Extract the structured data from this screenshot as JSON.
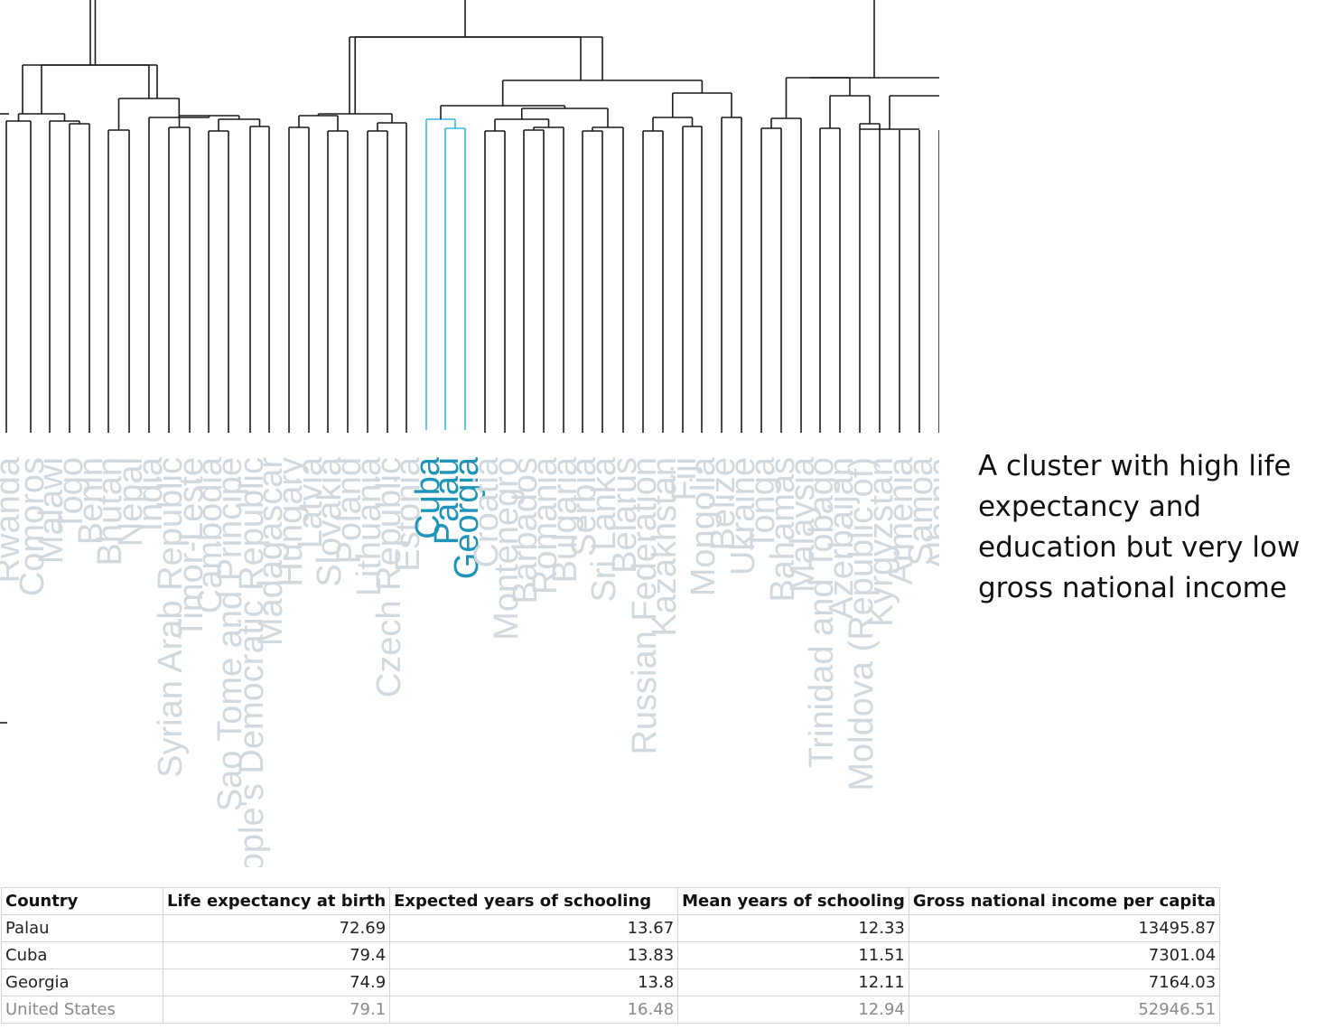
{
  "annotation": {
    "lines": [
      "A cluster with high life",
      "expectancy and",
      "education but very low",
      "gross national income"
    ]
  },
  "colors": {
    "tree_line": "#1a1a1a",
    "highlight_line": "#3bb8e0",
    "highlight_label": "#1e94b8",
    "faded_label": "#d2d9de"
  },
  "dendrogram": {
    "leaves": [
      {
        "name": "Rwanda",
        "highlight": false
      },
      {
        "name": "Comoros",
        "highlight": false
      },
      {
        "name": "Malawi",
        "highlight": false
      },
      {
        "name": "Togo",
        "highlight": false
      },
      {
        "name": "Benin",
        "highlight": false
      },
      {
        "name": "Bhutan",
        "highlight": false
      },
      {
        "name": "Nepal",
        "highlight": false
      },
      {
        "name": "India",
        "highlight": false
      },
      {
        "name": "Syrian Arab Republic",
        "highlight": false
      },
      {
        "name": "Timor-Leste",
        "highlight": false
      },
      {
        "name": "Cambodia",
        "highlight": false
      },
      {
        "name": "Sao Tome and Principe",
        "highlight": false
      },
      {
        "name": "Lao People's Democratic Republic",
        "highlight": false
      },
      {
        "name": "Madagascar",
        "highlight": false
      },
      {
        "name": "Hungary",
        "highlight": false
      },
      {
        "name": "Latvia",
        "highlight": false
      },
      {
        "name": "Slovakia",
        "highlight": false
      },
      {
        "name": "Poland",
        "highlight": false
      },
      {
        "name": "Lithuania",
        "highlight": false
      },
      {
        "name": "Czech Republic",
        "highlight": false
      },
      {
        "name": "Estonia",
        "highlight": false
      },
      {
        "name": "Cuba",
        "highlight": true
      },
      {
        "name": "Palau",
        "highlight": true
      },
      {
        "name": "Georgia",
        "highlight": true
      },
      {
        "name": "Croatia",
        "highlight": false
      },
      {
        "name": "Montenegro",
        "highlight": false
      },
      {
        "name": "Barbados",
        "highlight": false
      },
      {
        "name": "Romania",
        "highlight": false
      },
      {
        "name": "Bulgaria",
        "highlight": false
      },
      {
        "name": "Serbia",
        "highlight": false
      },
      {
        "name": "Sri Lanka",
        "highlight": false
      },
      {
        "name": "Belarus",
        "highlight": false
      },
      {
        "name": "Russian Federation",
        "highlight": false
      },
      {
        "name": "Kazakhstan",
        "highlight": false
      },
      {
        "name": "Fiji",
        "highlight": false
      },
      {
        "name": "Mongolia",
        "highlight": false
      },
      {
        "name": "Belize",
        "highlight": false
      },
      {
        "name": "Ukraine",
        "highlight": false
      },
      {
        "name": "Tonga",
        "highlight": false
      },
      {
        "name": "Bahamas",
        "highlight": false
      },
      {
        "name": "Malaysia",
        "highlight": false
      },
      {
        "name": "Trinidad and Tobago",
        "highlight": false
      },
      {
        "name": "Azerbaijan",
        "highlight": false
      },
      {
        "name": "Moldova (Republic of)",
        "highlight": false
      },
      {
        "name": "Kyrgyzstan",
        "highlight": false
      },
      {
        "name": "Armenia",
        "highlight": false
      },
      {
        "name": "Samoa",
        "highlight": false
      },
      {
        "name": "Albania",
        "highlight": false
      }
    ]
  },
  "table": {
    "headers": [
      "Country",
      "Life expectancy at birth",
      "Expected years of schooling",
      "Mean years of schooling",
      "Gross national income per capita"
    ],
    "rows": [
      {
        "country": "Palau",
        "life": "72.69",
        "expected": "13.67",
        "mean": "12.33",
        "gni": "13495.87",
        "muted": false
      },
      {
        "country": "Cuba",
        "life": "79.4",
        "expected": "13.83",
        "mean": "11.51",
        "gni": "7301.04",
        "muted": false
      },
      {
        "country": "Georgia",
        "life": "74.9",
        "expected": "13.8",
        "mean": "12.11",
        "gni": "7164.03",
        "muted": false
      },
      {
        "country": "United States",
        "life": "79.1",
        "expected": "16.48",
        "mean": "12.94",
        "gni": "52946.51",
        "muted": true
      }
    ]
  }
}
